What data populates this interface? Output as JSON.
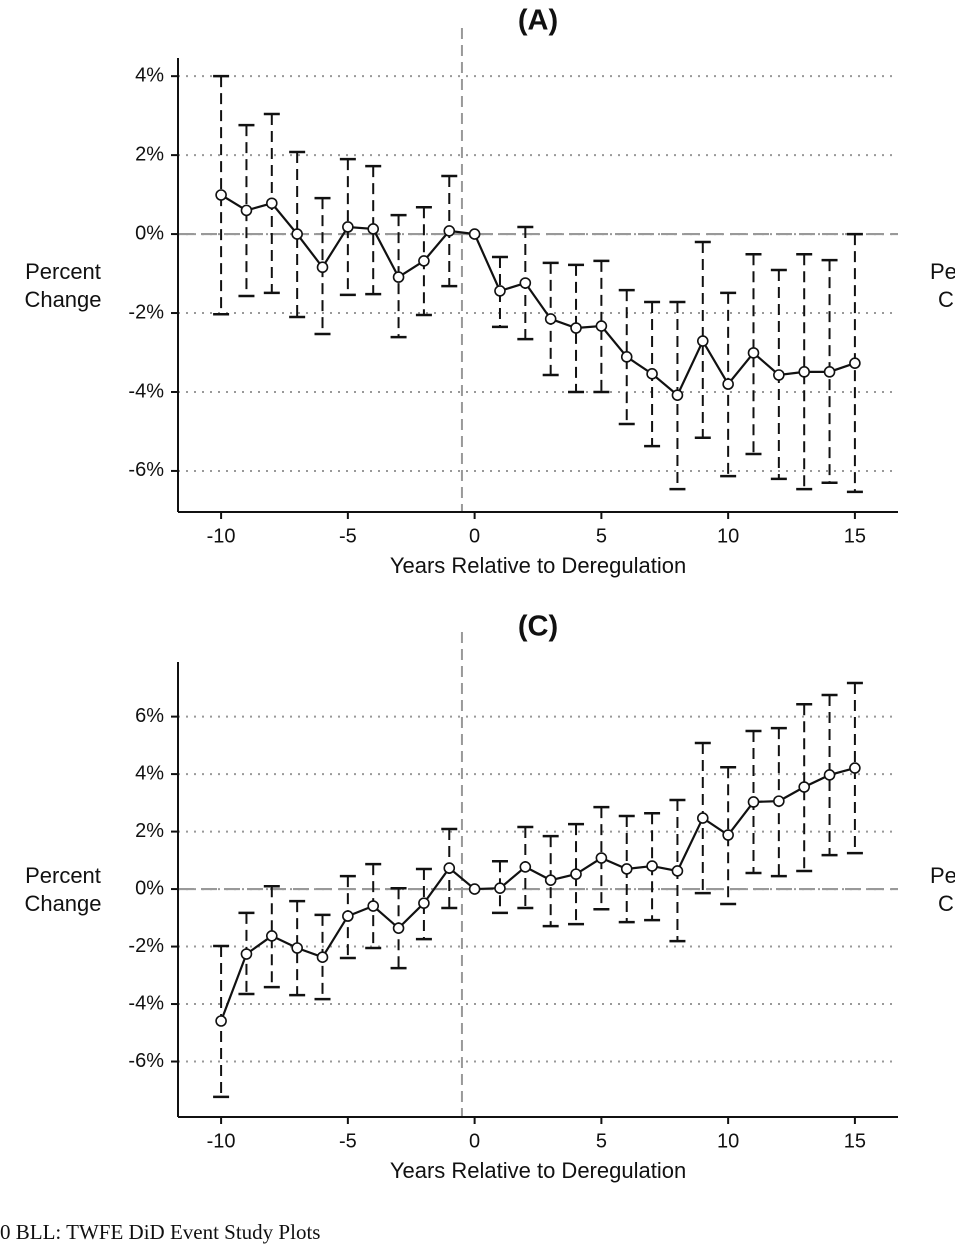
{
  "chart_data": [
    {
      "type": "line",
      "title": "(A)",
      "x_label": "Years Relative to Deregulation",
      "y_label": "Percent Change",
      "x": [
        -10,
        -9,
        -8,
        -7,
        -6,
        -5,
        -4,
        -3,
        -2,
        -1,
        0,
        1,
        2,
        3,
        4,
        5,
        6,
        7,
        8,
        9,
        10,
        11,
        12,
        13,
        14,
        15
      ],
      "series": [
        {
          "color": "#111111",
          "values": [
            0.99,
            0.6,
            0.78,
            0,
            -0.84,
            0.18,
            0.13,
            -1.09,
            -0.68,
            0.08,
            0,
            -1.44,
            -1.24,
            -2.15,
            -2.38,
            -2.33,
            -3.11,
            -3.54,
            -4.08,
            -2.71,
            -3.8,
            -3.01,
            -3.57,
            -3.49,
            -3.49,
            -3.27
          ],
          "ci_upper": [
            4.0,
            2.76,
            3.04,
            2.08,
            0.91,
            1.9,
            1.72,
            0.48,
            0.68,
            1.47,
            null,
            -0.58,
            0.18,
            -0.73,
            -0.78,
            -0.68,
            -1.42,
            -1.72,
            -1.72,
            -0.2,
            -1.49,
            -0.51,
            -0.91,
            -0.51,
            -0.66,
            0
          ],
          "ci_lower": [
            -2.03,
            -1.57,
            -1.49,
            -2.1,
            -2.53,
            -1.54,
            -1.52,
            -2.61,
            -2.05,
            -1.32,
            null,
            -2.35,
            -2.66,
            -3.57,
            -4.0,
            -4.0,
            -4.81,
            -5.37,
            -6.46,
            -5.16,
            -6.13,
            -5.57,
            -6.2,
            -6.46,
            -6.3,
            -6.53
          ]
        }
      ],
      "xlim": [
        -11.7,
        16.7
      ],
      "xticks": [
        -10,
        -5,
        0,
        5,
        10,
        15
      ],
      "ylim": [
        -7.04,
        4.46
      ],
      "yticks": [
        {
          "value": -6,
          "label": "-6%"
        },
        {
          "value": -4,
          "label": "-4%"
        },
        {
          "value": -2,
          "label": "-2%"
        },
        {
          "value": 0,
          "label": "0%"
        },
        {
          "value": 2,
          "label": "2%"
        },
        {
          "value": 4,
          "label": "4%"
        }
      ],
      "grid": true,
      "hline": 0,
      "vline": -0.5
    },
    {
      "type": "line",
      "title": "(C)",
      "x_label": "Years Relative to Deregulation",
      "y_label": "Percent Change",
      "x": [
        -10,
        -9,
        -8,
        -7,
        -6,
        -5,
        -4,
        -3,
        -2,
        -1,
        0,
        1,
        2,
        3,
        4,
        5,
        6,
        7,
        8,
        9,
        10,
        11,
        12,
        13,
        14,
        15
      ],
      "series": [
        {
          "color": "#111111",
          "values": [
            -4.59,
            -2.26,
            -1.63,
            -2.05,
            -2.37,
            -0.94,
            -0.59,
            -1.36,
            -0.49,
            0.73,
            0,
            0.03,
            0.77,
            0.31,
            0.52,
            1.08,
            0.7,
            0.8,
            0.63,
            2.47,
            1.88,
            3.03,
            3.06,
            3.55,
            3.97,
            4.21
          ],
          "ci_upper": [
            -1.98,
            -0.83,
            0.1,
            -0.42,
            -0.9,
            0.45,
            0.87,
            0.03,
            0.7,
            2.09,
            null,
            0.97,
            2.16,
            1.84,
            2.26,
            2.85,
            2.54,
            2.64,
            3.1,
            5.08,
            4.24,
            5.5,
            5.6,
            6.43,
            6.75,
            7.17
          ],
          "ci_lower": [
            -7.23,
            -3.65,
            -3.41,
            -3.69,
            -3.83,
            -2.4,
            -2.05,
            -2.75,
            -1.74,
            -0.66,
            null,
            -0.83,
            -0.66,
            -1.29,
            -1.22,
            -0.7,
            -1.15,
            -1.08,
            -1.81,
            -0.14,
            -0.52,
            0.56,
            0.45,
            0.63,
            1.18,
            1.25
          ]
        }
      ],
      "xlim": [
        -11.7,
        16.7
      ],
      "xticks": [
        -10,
        -5,
        0,
        5,
        10,
        15
      ],
      "ylim": [
        -7.93,
        7.9
      ],
      "yticks": [
        {
          "value": -6,
          "label": "-6%"
        },
        {
          "value": -4,
          "label": "-4%"
        },
        {
          "value": -2,
          "label": "-2%"
        },
        {
          "value": 0,
          "label": "0%"
        },
        {
          "value": 2,
          "label": "2%"
        },
        {
          "value": 4,
          "label": "4%"
        },
        {
          "value": 6,
          "label": "6%"
        }
      ],
      "grid": true,
      "hline": 0,
      "vline": -0.5
    }
  ],
  "edge_text": [
    [
      "Pe",
      "C"
    ],
    [
      "Pe",
      "C"
    ]
  ],
  "caption": "0  BLL: TWFE DiD Event Study Plots"
}
